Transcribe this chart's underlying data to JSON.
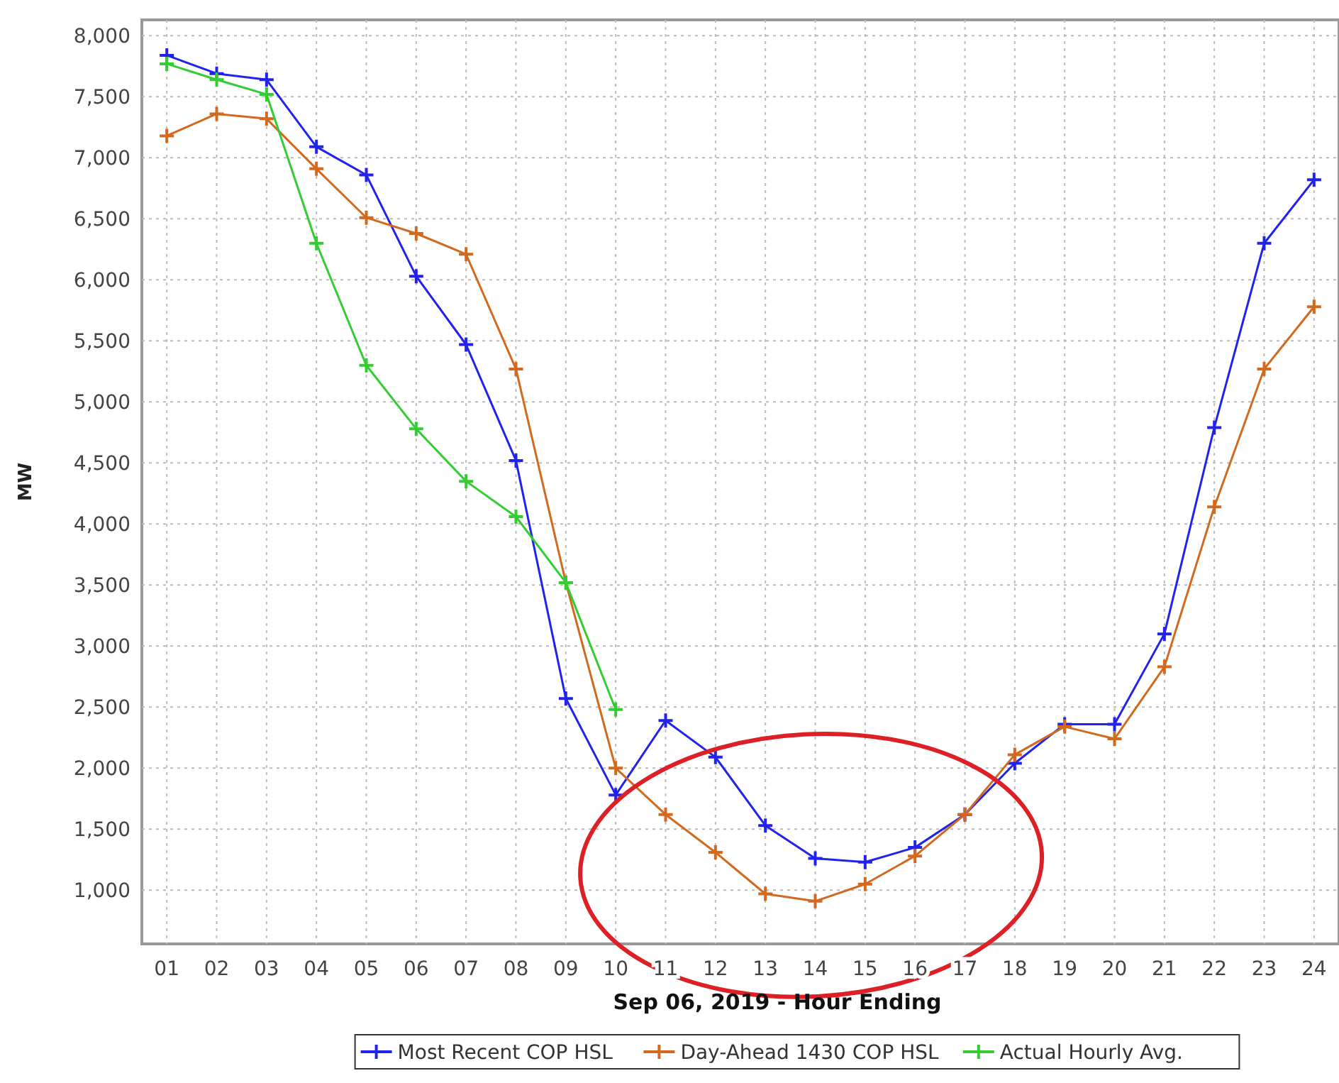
{
  "chart_data": {
    "type": "line",
    "xlabel": "Sep 06, 2019 - Hour Ending",
    "ylabel": "MW",
    "categories": [
      "01",
      "02",
      "03",
      "04",
      "05",
      "06",
      "07",
      "08",
      "09",
      "10",
      "11",
      "12",
      "13",
      "14",
      "15",
      "16",
      "17",
      "18",
      "19",
      "20",
      "21",
      "22",
      "23",
      "24"
    ],
    "series": [
      {
        "name": "Most Recent COP HSL",
        "color": "#2222ee",
        "values": [
          7840,
          7690,
          7640,
          7090,
          6860,
          6030,
          5470,
          4520,
          2570,
          1780,
          2390,
          2090,
          1530,
          1260,
          1230,
          1350,
          1620,
          2040,
          2360,
          2360,
          3100,
          4790,
          6300,
          6820
        ]
      },
      {
        "name": "Day-Ahead 1430 COP HSL",
        "color": "#d2691e",
        "values": [
          7180,
          7360,
          7320,
          6910,
          6510,
          6380,
          6210,
          5270,
          3520,
          2000,
          1620,
          1310,
          970,
          910,
          1050,
          1280,
          1620,
          2110,
          2340,
          2240,
          2830,
          4140,
          5270,
          5780
        ]
      },
      {
        "name": "Actual Hourly Avg.",
        "color": "#33cc33",
        "values": [
          7770,
          7640,
          7520,
          6300,
          5300,
          4780,
          4350,
          4060,
          3520,
          2480,
          null,
          null,
          null,
          null,
          null,
          null,
          null,
          null,
          null,
          null,
          null,
          null,
          null,
          null
        ]
      }
    ],
    "ylim": [
      560,
      8130
    ],
    "yticks": [
      {
        "value": 1000,
        "label": "1,000"
      },
      {
        "value": 1500,
        "label": "1,500"
      },
      {
        "value": 2000,
        "label": "2,000"
      },
      {
        "value": 2500,
        "label": "2,500"
      },
      {
        "value": 3000,
        "label": "3,000"
      },
      {
        "value": 3500,
        "label": "3,500"
      },
      {
        "value": 4000,
        "label": "4,000"
      },
      {
        "value": 4500,
        "label": "4,500"
      },
      {
        "value": 5000,
        "label": "5,000"
      },
      {
        "value": 5500,
        "label": "5,500"
      },
      {
        "value": 6000,
        "label": "6,000"
      },
      {
        "value": 6500,
        "label": "6,500"
      },
      {
        "value": 7000,
        "label": "7,000"
      },
      {
        "value": 7500,
        "label": "7,500"
      },
      {
        "value": 8000,
        "label": "8,000"
      }
    ],
    "grid": true,
    "legend": "bottom",
    "marker": "cross",
    "line_style": "solid"
  }
}
